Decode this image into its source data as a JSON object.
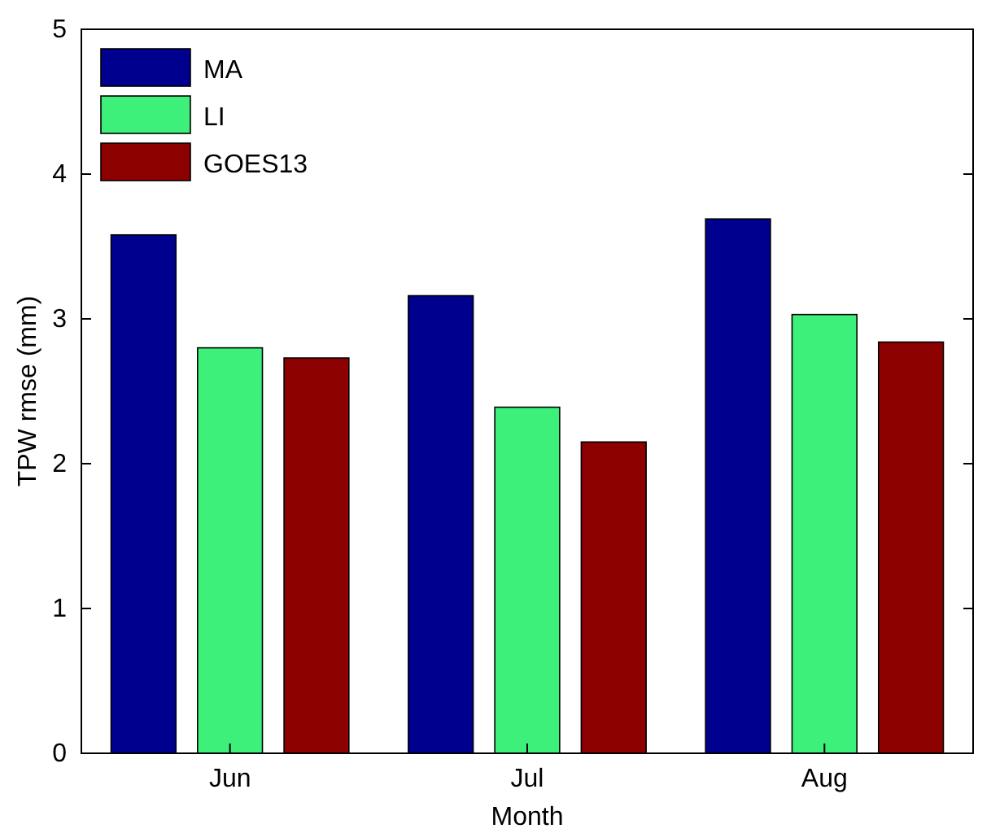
{
  "chart_data": {
    "type": "bar",
    "xlabel": "Month",
    "ylabel": "TPW rmse (mm)",
    "categories": [
      "Jun",
      "Jul",
      "Aug"
    ],
    "series": [
      {
        "name": "MA",
        "color": "#00008f",
        "values": [
          3.58,
          3.16,
          3.69
        ]
      },
      {
        "name": "LI",
        "color": "#3cf07a",
        "values": [
          2.8,
          2.39,
          3.03
        ]
      },
      {
        "name": "GOES13",
        "color": "#8c0000",
        "values": [
          2.73,
          2.15,
          2.84
        ]
      }
    ],
    "ylim": [
      0,
      5
    ],
    "yticks": [
      0,
      1,
      2,
      3,
      4,
      5
    ],
    "legend": "top left",
    "grid": false
  }
}
